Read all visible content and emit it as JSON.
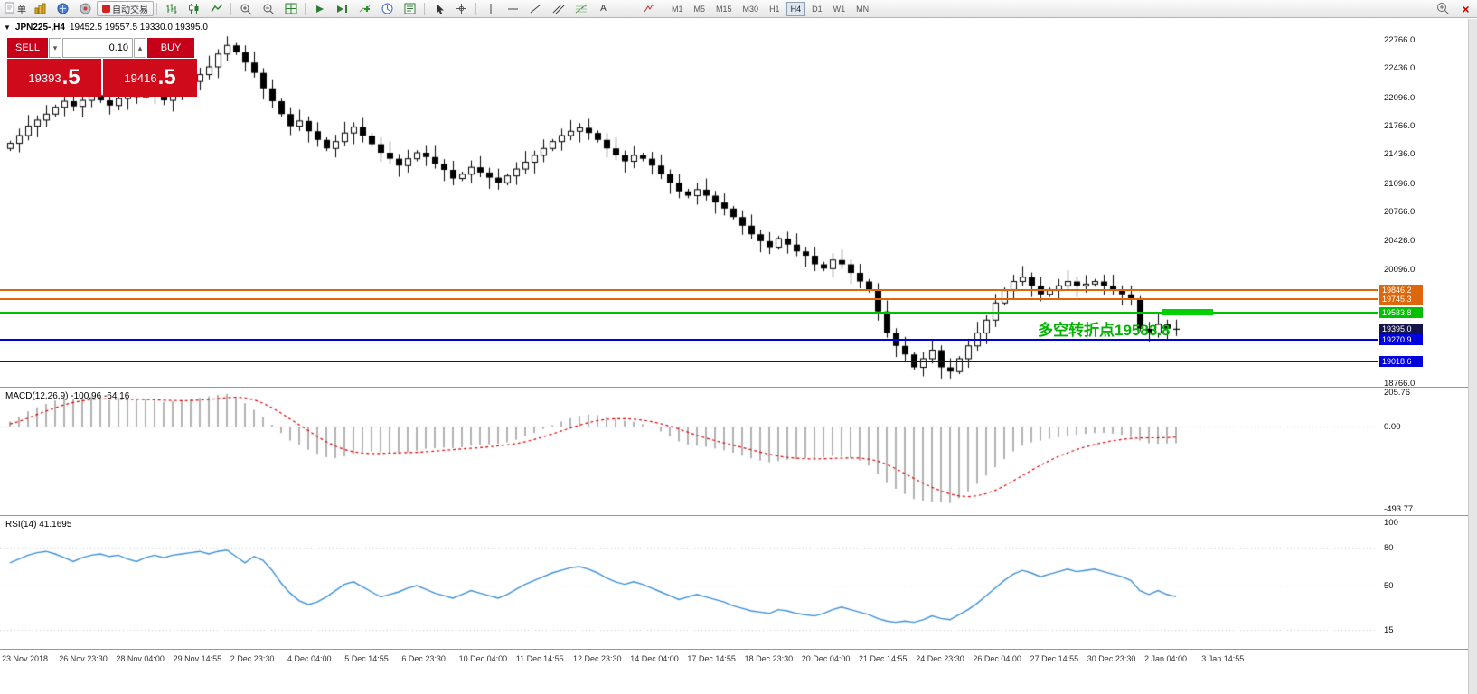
{
  "toolbar": {
    "new_order_label": "单",
    "autotrading_label": "自动交易",
    "timeframes": [
      "M1",
      "M5",
      "M15",
      "M30",
      "H1",
      "H4",
      "D1",
      "W1",
      "MN"
    ],
    "active_timeframe": "H4"
  },
  "icons": {
    "dropdown_caret": "▾",
    "stepper_caret": "▴",
    "panel_toggle": "▼",
    "close_glyph": "×",
    "text_tool": "A",
    "label_tool": "T"
  },
  "chart": {
    "title": "JPN225-,H4",
    "ohlc": "19452.5 19557.5 19330.0 19395.0",
    "trade_panel": {
      "sell_label": "SELL",
      "buy_label": "BUY",
      "volume": "0.10",
      "sell_price_main": "19393",
      "sell_price_frac": ".5",
      "buy_price_main": "19416",
      "buy_price_frac": ".5"
    },
    "annotation": "多空转折点19583.8",
    "price_axis_labels": [
      22766.0,
      22436.0,
      22096.0,
      21766.0,
      21436.0,
      21096.0,
      20766.0,
      20426.0,
      20096.0,
      18766.0
    ],
    "levels": [
      {
        "price": 19846.2,
        "label": "19846.2",
        "color": "#E0660A",
        "type": "resistance"
      },
      {
        "price": 19745.3,
        "label": "19745.3",
        "color": "#E0660A",
        "type": "resistance"
      },
      {
        "price": 19583.8,
        "label": "19583.8",
        "color": "#00C000",
        "type": "pivot"
      },
      {
        "price": 19395.0,
        "label": "19395.0",
        "color": "#14144A",
        "type": "current-price"
      },
      {
        "price": 19270.9,
        "label": "19270.9",
        "color": "#0000DE",
        "type": "support"
      },
      {
        "price": 19018.6,
        "label": "19018.6",
        "color": "#0000DE",
        "type": "support"
      }
    ]
  },
  "macd": {
    "label": "MACD(12,26,9) -100.96 -64.16",
    "scale_labels": [
      "205.76",
      "0.00",
      "-493.77"
    ],
    "scale_max": 205.76,
    "scale_min": -493.77
  },
  "rsi": {
    "label": "RSI(14) 41.1695",
    "scale_labels": [
      "100",
      "80",
      "50",
      "15"
    ],
    "level_lines": [
      80,
      50,
      15
    ]
  },
  "time_axis": [
    "23 Nov 2018",
    "26 Nov 23:30",
    "28 Nov 04:00",
    "29 Nov 14:55",
    "2 Dec 23:30",
    "4 Dec 04:00",
    "5 Dec 14:55",
    "6 Dec 23:30",
    "10 Dec 04:00",
    "11 Dec 14:55",
    "12 Dec 23:30",
    "14 Dec 04:00",
    "17 Dec 14:55",
    "18 Dec 23:30",
    "20 Dec 04:00",
    "21 Dec 14:55",
    "24 Dec 23:30",
    "26 Dec 04:00",
    "27 Dec 14:55",
    "30 Dec 23:30",
    "2 Jan 04:00",
    "3 Jan 14:55"
  ],
  "chart_data": {
    "type": "candlestick",
    "symbol": "JPN225-",
    "period": "H4",
    "ylim": [
      18766.0,
      23008.0
    ],
    "candles_close": [
      21560,
      21650,
      21760,
      21830,
      21900,
      21980,
      22050,
      21990,
      22060,
      22120,
      22060,
      22000,
      22080,
      22150,
      22100,
      22180,
      22120,
      22060,
      22140,
      22200,
      22280,
      22360,
      22450,
      22600,
      22700,
      22620,
      22500,
      22380,
      22200,
      22050,
      21900,
      21760,
      21820,
      21700,
      21600,
      21500,
      21580,
      21680,
      21750,
      21650,
      21550,
      21450,
      21380,
      21300,
      21380,
      21450,
      21400,
      21320,
      21250,
      21150,
      21200,
      21280,
      21220,
      21160,
      21100,
      21180,
      21260,
      21340,
      21420,
      21500,
      21580,
      21650,
      21700,
      21740,
      21680,
      21600,
      21500,
      21420,
      21350,
      21420,
      21380,
      21300,
      21200,
      21100,
      21000,
      20950,
      21020,
      20950,
      20870,
      20800,
      20700,
      20600,
      20500,
      20420,
      20350,
      20450,
      20380,
      20300,
      20250,
      20150,
      20100,
      20200,
      20150,
      20050,
      19950,
      19850,
      19600,
      19350,
      19200,
      19100,
      18950,
      19050,
      19150,
      18950,
      18900,
      19050,
      19200,
      19350,
      19500,
      19700,
      19850,
      19950,
      20000,
      19900,
      19800,
      19850,
      19900,
      19950,
      19900,
      19920,
      19950,
      19900,
      19850,
      19800,
      19750,
      19400,
      19350,
      19450,
      19400,
      19395
    ],
    "macd_histogram": [
      30,
      60,
      90,
      115,
      135,
      155,
      170,
      165,
      172,
      180,
      170,
      158,
      162,
      168,
      160,
      162,
      155,
      148,
      152,
      158,
      165,
      172,
      180,
      190,
      195,
      175,
      140,
      100,
      55,
      10,
      -40,
      -85,
      -110,
      -140,
      -165,
      -185,
      -190,
      -180,
      -165,
      -155,
      -150,
      -155,
      -160,
      -165,
      -155,
      -145,
      -135,
      -130,
      -128,
      -130,
      -125,
      -115,
      -110,
      -108,
      -105,
      -95,
      -80,
      -60,
      -38,
      -15,
      8,
      30,
      50,
      65,
      70,
      68,
      60,
      48,
      35,
      28,
      15,
      -5,
      -30,
      -60,
      -90,
      -110,
      -115,
      -122,
      -132,
      -142,
      -158,
      -175,
      -192,
      -205,
      -215,
      -208,
      -200,
      -196,
      -192,
      -190,
      -185,
      -178,
      -180,
      -190,
      -205,
      -235,
      -285,
      -335,
      -375,
      -405,
      -435,
      -445,
      -450,
      -455,
      -460,
      -430,
      -390,
      -345,
      -295,
      -245,
      -195,
      -150,
      -115,
      -95,
      -85,
      -75,
      -65,
      -55,
      -50,
      -45,
      -40,
      -38,
      -42,
      -50,
      -62,
      -85,
      -100,
      -105,
      -102,
      -101
    ],
    "macd_signal": [
      15,
      30,
      50,
      72,
      92,
      112,
      130,
      144,
      154,
      162,
      166,
      166,
      164,
      163,
      163,
      162,
      160,
      158,
      156,
      155,
      156,
      158,
      162,
      167,
      173,
      176,
      172,
      160,
      140,
      112,
      80,
      45,
      10,
      -25,
      -60,
      -92,
      -118,
      -138,
      -152,
      -160,
      -163,
      -162,
      -160,
      -158,
      -157,
      -155,
      -152,
      -148,
      -143,
      -139,
      -135,
      -131,
      -127,
      -122,
      -117,
      -111,
      -103,
      -92,
      -78,
      -62,
      -45,
      -27,
      -9,
      8,
      23,
      35,
      43,
      47,
      47,
      44,
      38,
      29,
      17,
      2,
      -15,
      -34,
      -53,
      -70,
      -85,
      -99,
      -112,
      -126,
      -140,
      -154,
      -167,
      -178,
      -186,
      -191,
      -194,
      -195,
      -194,
      -192,
      -190,
      -189,
      -190,
      -196,
      -208,
      -228,
      -254,
      -283,
      -312,
      -340,
      -365,
      -387,
      -405,
      -417,
      -421,
      -416,
      -403,
      -383,
      -357,
      -327,
      -295,
      -263,
      -233,
      -205,
      -180,
      -158,
      -139,
      -122,
      -108,
      -96,
      -86,
      -78,
      -72,
      -69,
      -68,
      -68,
      -67,
      -64
    ],
    "rsi": [
      68,
      71,
      74,
      76,
      77,
      75,
      72,
      69,
      72,
      74,
      75,
      73,
      74,
      71,
      69,
      72,
      74,
      72,
      74,
      75,
      76,
      77,
      75,
      77,
      78,
      73,
      68,
      73,
      70,
      62,
      52,
      44,
      38,
      35,
      37,
      41,
      46,
      51,
      53,
      49,
      45,
      41,
      43,
      45,
      48,
      50,
      47,
      44,
      42,
      40,
      43,
      46,
      44,
      42,
      40,
      43,
      47,
      51,
      54,
      57,
      60,
      62,
      64,
      65,
      63,
      60,
      56,
      53,
      51,
      53,
      51,
      48,
      45,
      42,
      39,
      41,
      43,
      41,
      39,
      37,
      34,
      32,
      30,
      29,
      28,
      31,
      30,
      28,
      27,
      26,
      28,
      31,
      33,
      31,
      29,
      27,
      24,
      22,
      21,
      22,
      21,
      23,
      26,
      24,
      23,
      27,
      31,
      36,
      42,
      48,
      54,
      59,
      62,
      60,
      57,
      59,
      61,
      63,
      61,
      62,
      63,
      61,
      59,
      57,
      54,
      46,
      43,
      46,
      43,
      41.17
    ]
  }
}
